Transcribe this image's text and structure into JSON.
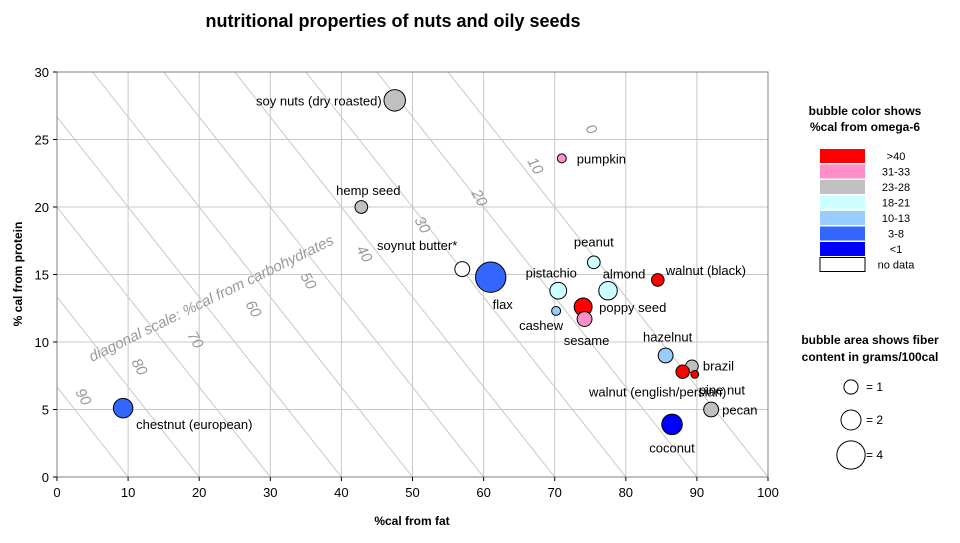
{
  "chart_data": {
    "type": "scatter",
    "title": "nutritional properties of nuts and oily seeds",
    "xlabel": "%cal from fat",
    "ylabel": "% cal from protein",
    "xlim": [
      0,
      100
    ],
    "ylim": [
      0,
      30
    ],
    "xticks": [
      "0",
      "10",
      "20",
      "30",
      "40",
      "50",
      "60",
      "70",
      "80",
      "90",
      "100"
    ],
    "yticks": [
      "0",
      "5",
      "10",
      "15",
      "20",
      "25",
      "30"
    ],
    "grid": true,
    "diagonal_scale": {
      "label": "diagonal scale: %cal from carbohydrates",
      "values": [
        "0",
        "10",
        "20",
        "30",
        "40",
        "50",
        "60",
        "70",
        "80",
        "90"
      ]
    },
    "points": [
      {
        "name": "soy nuts (dry roasted)",
        "x": 47.5,
        "y": 27.9,
        "fiber": 2.3,
        "color_group": "23-28"
      },
      {
        "name": "pumpkin",
        "x": 71.0,
        "y": 23.6,
        "fiber": 0.4,
        "color_group": "31-33"
      },
      {
        "name": "hemp seed",
        "x": 42.8,
        "y": 20.0,
        "fiber": 0.8,
        "color_group": "23-28"
      },
      {
        "name": "soynut butter*",
        "x": 57.0,
        "y": 15.4,
        "fiber": 1.1,
        "color_group": "no data"
      },
      {
        "name": "flax",
        "x": 61.0,
        "y": 14.8,
        "fiber": 4.6,
        "color_group": "3-8"
      },
      {
        "name": "peanut",
        "x": 75.5,
        "y": 15.9,
        "fiber": 0.8,
        "color_group": "18-21"
      },
      {
        "name": "walnut (black)",
        "x": 84.5,
        "y": 14.6,
        "fiber": 0.8,
        "color_group": ">40"
      },
      {
        "name": "pistachio",
        "x": 70.5,
        "y": 13.8,
        "fiber": 1.4,
        "color_group": "18-21"
      },
      {
        "name": "almond",
        "x": 77.5,
        "y": 13.8,
        "fiber": 1.7,
        "color_group": "18-21"
      },
      {
        "name": "cashew",
        "x": 70.2,
        "y": 12.3,
        "fiber": 0.4,
        "color_group": "10-13"
      },
      {
        "name": "poppy seed",
        "x": 74.0,
        "y": 12.6,
        "fiber": 1.6,
        "color_group": ">40"
      },
      {
        "name": "sesame",
        "x": 74.2,
        "y": 11.7,
        "fiber": 1.1,
        "color_group": "31-33"
      },
      {
        "name": "hazelnut",
        "x": 85.6,
        "y": 9.0,
        "fiber": 1.1,
        "color_group": "10-13"
      },
      {
        "name": "brazil",
        "x": 89.3,
        "y": 8.2,
        "fiber": 0.8,
        "color_group": "23-28"
      },
      {
        "name": "pine nut",
        "x": 89.7,
        "y": 7.6,
        "fiber": 0.3,
        "color_group": ">40"
      },
      {
        "name": "walnut (english/persian)",
        "x": 88.0,
        "y": 7.8,
        "fiber": 0.9,
        "color_group": ">40"
      },
      {
        "name": "pecan",
        "x": 92.0,
        "y": 5.0,
        "fiber": 1.1,
        "color_group": "23-28"
      },
      {
        "name": "coconut",
        "x": 86.5,
        "y": 3.9,
        "fiber": 2.1,
        "color_group": "<1"
      },
      {
        "name": "chestnut (european)",
        "x": 9.3,
        "y": 5.1,
        "fiber": 1.9,
        "color_group": "3-8"
      }
    ],
    "legend": {
      "color_title_1": "bubble color shows",
      "color_title_2": "%cal from omega-6",
      "color_items": [
        {
          "label": ">40",
          "color": "#ff0000"
        },
        {
          "label": "31-33",
          "color": "#ff8fc8"
        },
        {
          "label": "23-28",
          "color": "#c0c0c0"
        },
        {
          "label": "18-21",
          "color": "#ccffff"
        },
        {
          "label": "10-13",
          "color": "#99ccff"
        },
        {
          "label": "3-8",
          "color": "#3366ff"
        },
        {
          "label": "<1",
          "color": "#0000ff"
        },
        {
          "label": "no data",
          "color": "#ffffff"
        }
      ],
      "size_title_1": "bubble area shows fiber",
      "size_title_2": "content in grams/100cal",
      "size_items": [
        {
          "label": "=  1",
          "value": 1
        },
        {
          "label": "=  2",
          "value": 2
        },
        {
          "label": "=  4",
          "value": 4
        }
      ]
    }
  }
}
